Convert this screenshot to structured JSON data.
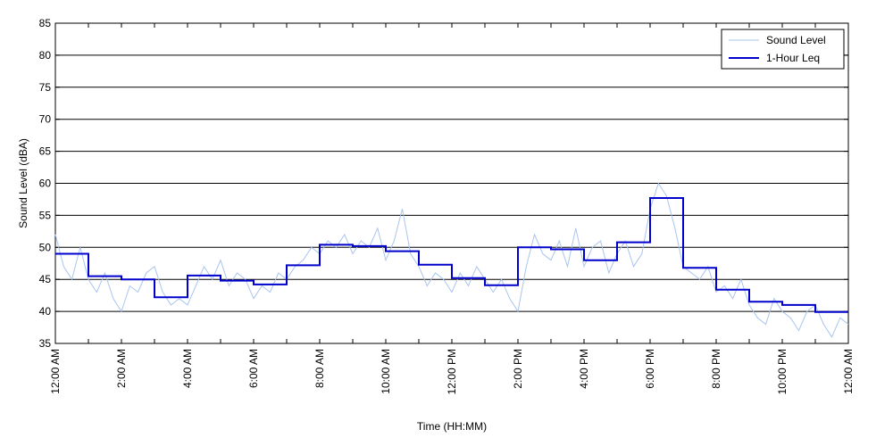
{
  "chart_data": {
    "type": "line",
    "xlabel": "Time (HH:MM)",
    "ylabel": "Sound Level (dBA)",
    "xlim": [
      0,
      24
    ],
    "ylim": [
      35,
      85
    ],
    "y_ticks": [
      35,
      40,
      45,
      50,
      55,
      60,
      65,
      70,
      75,
      80,
      85
    ],
    "x_ticks": [
      0,
      2,
      4,
      6,
      8,
      10,
      12,
      14,
      16,
      18,
      20,
      22,
      24
    ],
    "x_tick_labels": [
      "12:00 AM",
      "2:00 AM",
      "4:00 AM",
      "6:00 AM",
      "8:00 AM",
      "10:00 AM",
      "12:00 PM",
      "2:00 PM",
      "4:00 PM",
      "6:00 PM",
      "8:00 PM",
      "10:00 PM",
      "12:00 AM"
    ],
    "grid": "horizontal",
    "legend_position": "top-right",
    "series": [
      {
        "name": "Sound Level",
        "color": "#a9c4f0",
        "style": "thin-line",
        "x": [
          0,
          0.25,
          0.5,
          0.75,
          1,
          1.25,
          1.5,
          1.75,
          2,
          2.25,
          2.5,
          2.75,
          3,
          3.25,
          3.5,
          3.75,
          4,
          4.25,
          4.5,
          4.75,
          5,
          5.25,
          5.5,
          5.75,
          6,
          6.25,
          6.5,
          6.75,
          7,
          7.25,
          7.5,
          7.75,
          8,
          8.25,
          8.5,
          8.75,
          9,
          9.25,
          9.5,
          9.75,
          10,
          10.25,
          10.5,
          10.75,
          11,
          11.25,
          11.5,
          11.75,
          12,
          12.25,
          12.5,
          12.75,
          13,
          13.25,
          13.5,
          13.75,
          14,
          14.25,
          14.5,
          14.75,
          15,
          15.25,
          15.5,
          15.75,
          16,
          16.25,
          16.5,
          16.75,
          17,
          17.25,
          17.5,
          17.75,
          18,
          18.25,
          18.5,
          18.75,
          19,
          19.25,
          19.5,
          19.75,
          20,
          20.25,
          20.5,
          20.75,
          21,
          21.25,
          21.5,
          21.75,
          22,
          22.25,
          22.5,
          22.75,
          23,
          23.25,
          23.5,
          23.75,
          24
        ],
        "y": [
          52,
          47,
          45,
          50,
          45,
          43,
          46,
          42,
          40,
          44,
          43,
          46,
          47,
          43,
          41,
          42,
          41,
          44,
          47,
          45,
          48,
          44,
          46,
          45,
          42,
          44,
          43,
          46,
          45,
          47,
          48,
          50,
          49,
          51,
          50,
          52,
          49,
          51,
          50,
          53,
          48,
          51,
          56,
          49,
          47,
          44,
          46,
          45,
          43,
          46,
          44,
          47,
          45,
          43,
          45,
          42,
          40,
          47,
          52,
          49,
          48,
          51,
          47,
          53,
          47,
          50,
          51,
          46,
          49,
          51,
          47,
          49,
          56,
          60,
          58,
          53,
          47,
          46,
          45,
          47,
          43,
          44,
          42,
          45,
          41,
          39,
          38,
          42,
          40,
          39,
          37,
          40,
          41,
          38,
          36,
          39,
          38
        ]
      },
      {
        "name": "1-Hour Leq",
        "color": "#0000cc",
        "style": "step",
        "hours": [
          0,
          1,
          2,
          3,
          4,
          5,
          6,
          7,
          8,
          9,
          10,
          11,
          12,
          13,
          14,
          15,
          16,
          17,
          18,
          19,
          20,
          21,
          22,
          23
        ],
        "values": [
          49,
          45.5,
          45,
          42.2,
          45.6,
          44.8,
          44.2,
          47.2,
          50.4,
          50.2,
          49.4,
          47.3,
          45.2,
          44.1,
          50,
          49.7,
          48,
          50.8,
          57.7,
          46.8,
          43.4,
          41.5,
          41,
          39.9
        ]
      }
    ]
  }
}
